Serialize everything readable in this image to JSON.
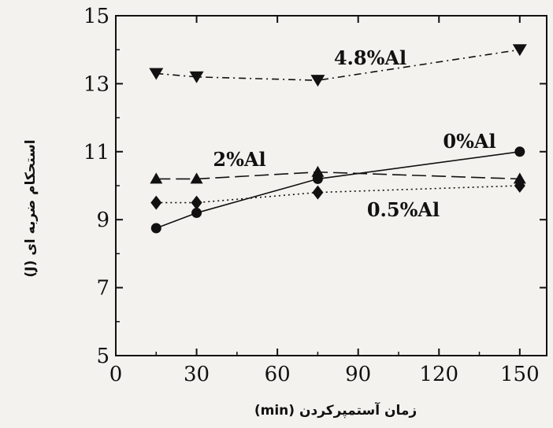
{
  "chart_data": {
    "type": "line",
    "xlabel": "زمان آستمپرکردن (min)",
    "ylabel": "استحکام ضربه ای (J)",
    "xlim": [
      0,
      160
    ],
    "ylim": [
      5,
      15
    ],
    "x_ticks": [
      0,
      30,
      60,
      90,
      120,
      150
    ],
    "y_ticks": [
      5,
      7,
      9,
      11,
      13,
      15
    ],
    "grid": false,
    "legend": "inline labels",
    "series": [
      {
        "name": "4.8%Al",
        "marker": "triangle-down",
        "line_style": "dash-dot",
        "x": [
          15,
          30,
          75,
          150
        ],
        "y": [
          13.3,
          13.2,
          13.1,
          14.0
        ]
      },
      {
        "name": "2%Al",
        "marker": "triangle-up",
        "line_style": "long-dash",
        "x": [
          15,
          30,
          75,
          150
        ],
        "y": [
          10.2,
          10.2,
          10.4,
          10.2
        ]
      },
      {
        "name": "0%Al",
        "marker": "circle",
        "line_style": "solid",
        "x": [
          15,
          30,
          75,
          150
        ],
        "y": [
          8.75,
          9.2,
          10.2,
          11.0
        ]
      },
      {
        "name": "0.5%Al",
        "marker": "diamond",
        "line_style": "dotted",
        "x": [
          15,
          30,
          75,
          150
        ],
        "y": [
          9.5,
          9.5,
          9.8,
          10.0
        ]
      }
    ]
  },
  "colors": {
    "ink": "#111111",
    "background": "#f4f2ee"
  }
}
